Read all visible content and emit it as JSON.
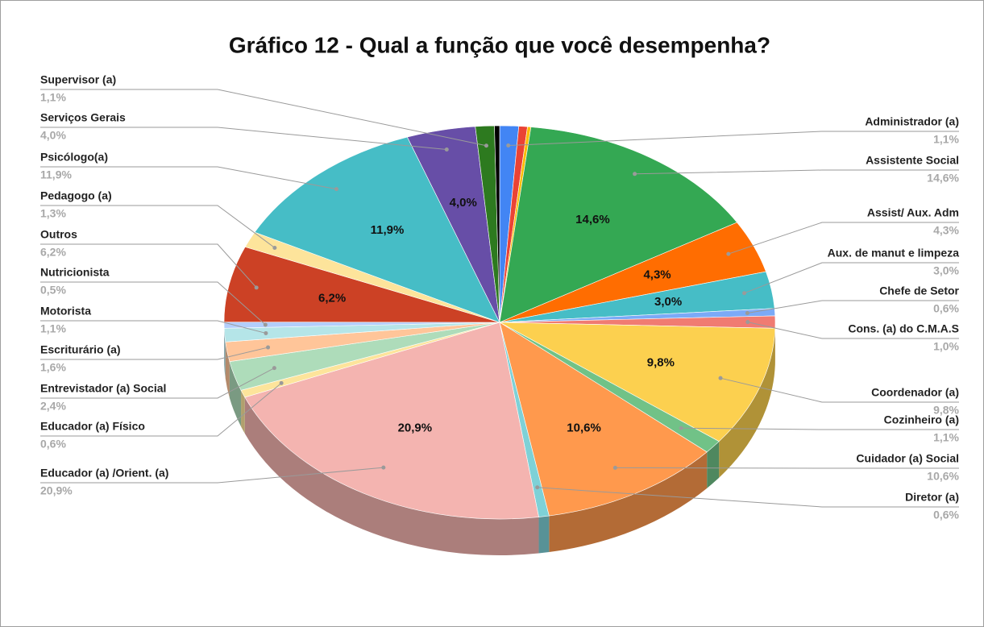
{
  "chart_data": {
    "type": "pie3d",
    "title": "Gráfico 12 - Qual a função que você desempenha?",
    "categories": [
      "Administrador (a)",
      null,
      null,
      "Assistente Social",
      "Assist/ Aux. Adm",
      "Aux. de manut e limpeza",
      "Chefe de Setor",
      "Cons. (a) do C.M.A.S",
      "Coordenador (a)",
      "Cozinheiro (a)",
      "Cuidador (a) Social",
      "Diretor (a)",
      "Educador (a) /Orient. (a)",
      "Educador (a) Físico",
      "Entrevistador (a) Social",
      "Escriturário (a)",
      "Motorista",
      "Nutricionista",
      "Outros",
      "Pedagogo (a)",
      "Psicólogo(a)",
      "Serviços Gerais",
      "Supervisor (a)",
      null
    ],
    "values": [
      1.1,
      0.5,
      0.2,
      14.6,
      4.3,
      3.0,
      0.6,
      1.0,
      9.8,
      1.1,
      10.6,
      0.6,
      20.9,
      0.6,
      2.4,
      1.6,
      1.1,
      0.5,
      6.2,
      1.3,
      11.9,
      4.0,
      1.1,
      0.3
    ],
    "value_labels": [
      "1,1%",
      null,
      null,
      "14,6%",
      "4,3%",
      "3,0%",
      "0,6%",
      "1,0%",
      "9,8%",
      "1,1%",
      "10,6%",
      "0,6%",
      "20,9%",
      "0,6%",
      "2,4%",
      "1,6%",
      "1,1%",
      "0,5%",
      "6,2%",
      "1,3%",
      "11,9%",
      "4,0%",
      "1,1%",
      null
    ],
    "colors": [
      "#4285f4",
      "#ea4335",
      "#fbbc04",
      "#34a853",
      "#ff6d01",
      "#46bdc6",
      "#7baaf7",
      "#f07b72",
      "#fcd04f",
      "#71c287",
      "#ff994d",
      "#7ed1d7",
      "#f4b4b0",
      "#fde49b",
      "#aedcba",
      "#ffc599",
      "#b5e5e8",
      "#b3cefb",
      "#cc4125",
      "#fde49b",
      "#46bdc6",
      "#674ea7",
      "#2d7a1f",
      "#000000"
    ]
  }
}
